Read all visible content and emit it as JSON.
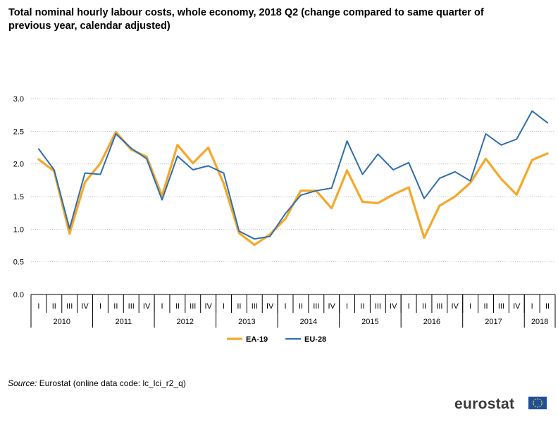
{
  "title": "Total nominal hourly labour costs, whole economy, 2018 Q2 (change compared to same quarter of previous year, calendar adjusted)",
  "source_label": "Source:",
  "source_text": "Eurostat (online data code: lc_lci_r2_q)",
  "logo_text": "eurostat",
  "colors": {
    "ea19": "#f4a82a",
    "eu28": "#2e6ead",
    "grid": "#bfbfbf",
    "axis": "#000000"
  },
  "chart_data": {
    "type": "line",
    "title": "Total nominal hourly labour costs, whole economy, 2018 Q2 (change compared to same quarter of previous year, calendar adjusted)",
    "xlabel": "",
    "ylabel": "",
    "ylim": [
      0,
      3.0
    ],
    "yticks": [
      "0.0",
      "0.5",
      "1.0",
      "1.5",
      "2.0",
      "2.5",
      "3.0"
    ],
    "grid": true,
    "legend_position": "bottom",
    "quarters": [
      "I",
      "II",
      "III",
      "IV",
      "I",
      "II",
      "III",
      "IV",
      "I",
      "II",
      "III",
      "IV",
      "I",
      "II",
      "III",
      "IV",
      "I",
      "II",
      "III",
      "IV",
      "I",
      "II",
      "III",
      "IV",
      "I",
      "II",
      "III",
      "IV",
      "I",
      "II",
      "III",
      "IV",
      "I",
      "II"
    ],
    "years": [
      {
        "label": "2010",
        "count": 4
      },
      {
        "label": "2011",
        "count": 4
      },
      {
        "label": "2012",
        "count": 4
      },
      {
        "label": "2013",
        "count": 4
      },
      {
        "label": "2014",
        "count": 4
      },
      {
        "label": "2015",
        "count": 4
      },
      {
        "label": "2016",
        "count": 4
      },
      {
        "label": "2017",
        "count": 4
      },
      {
        "label": "2018",
        "count": 2
      }
    ],
    "series": [
      {
        "name": "EA-19",
        "color": "#f4a82a",
        "values": [
          2.07,
          1.89,
          0.93,
          1.72,
          2.01,
          2.49,
          2.22,
          2.11,
          1.51,
          2.29,
          2.01,
          2.25,
          1.7,
          0.94,
          0.76,
          0.92,
          1.16,
          1.59,
          1.59,
          1.32,
          1.9,
          1.42,
          1.4,
          1.53,
          1.64,
          0.87,
          1.36,
          1.5,
          1.71,
          2.08,
          1.77,
          1.53,
          2.06,
          2.16
        ]
      },
      {
        "name": "EU-28",
        "color": "#2e6ead",
        "values": [
          2.23,
          1.91,
          1.01,
          1.86,
          1.84,
          2.46,
          2.24,
          2.08,
          1.45,
          2.12,
          1.91,
          1.97,
          1.86,
          0.97,
          0.85,
          0.89,
          1.24,
          1.52,
          1.59,
          1.63,
          2.35,
          1.84,
          2.15,
          1.91,
          2.02,
          1.47,
          1.78,
          1.88,
          1.74,
          2.46,
          2.29,
          2.38,
          2.81,
          2.63
        ]
      }
    ]
  }
}
